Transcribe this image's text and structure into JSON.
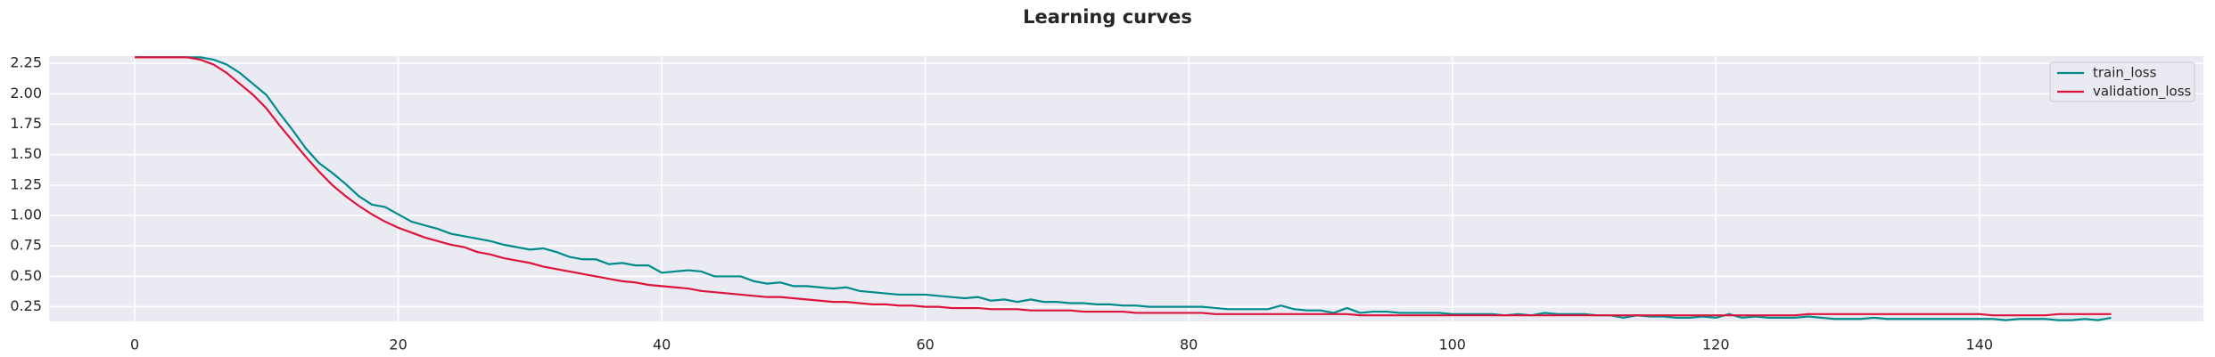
{
  "chart_data": {
    "type": "line",
    "title": "Learning curves",
    "x": [
      0,
      1,
      2,
      3,
      4,
      5,
      6,
      7,
      8,
      9,
      10,
      11,
      12,
      13,
      14,
      15,
      16,
      17,
      18,
      19,
      20,
      21,
      22,
      23,
      24,
      25,
      26,
      27,
      28,
      29,
      30,
      31,
      32,
      33,
      34,
      35,
      36,
      37,
      38,
      39,
      40,
      41,
      42,
      43,
      44,
      45,
      46,
      47,
      48,
      49,
      50,
      51,
      52,
      53,
      54,
      55,
      56,
      57,
      58,
      59,
      60,
      61,
      62,
      63,
      64,
      65,
      66,
      67,
      68,
      69,
      70,
      71,
      72,
      73,
      74,
      75,
      76,
      77,
      78,
      79,
      80,
      81,
      82,
      83,
      84,
      85,
      86,
      87,
      88,
      89,
      90,
      91,
      92,
      93,
      94,
      95,
      96,
      97,
      98,
      99,
      100,
      101,
      102,
      103,
      104,
      105,
      106,
      107,
      108,
      109,
      110,
      111,
      112,
      113,
      114,
      115,
      116,
      117,
      118,
      119,
      120,
      121,
      122,
      123,
      124,
      125,
      126,
      127,
      128,
      129,
      130,
      131,
      132,
      133,
      134,
      135,
      136,
      137,
      138,
      139,
      140,
      141,
      142,
      143,
      144,
      145,
      146,
      147,
      148,
      149,
      150
    ],
    "series": [
      {
        "name": "train_loss",
        "color": "#008b8b",
        "values": [
          2.3,
          2.3,
          2.3,
          2.3,
          2.3,
          2.3,
          2.28,
          2.24,
          2.17,
          2.08,
          1.99,
          1.84,
          1.7,
          1.55,
          1.43,
          1.35,
          1.26,
          1.16,
          1.09,
          1.07,
          1.01,
          0.95,
          0.92,
          0.89,
          0.85,
          0.83,
          0.81,
          0.79,
          0.76,
          0.74,
          0.72,
          0.73,
          0.7,
          0.66,
          0.64,
          0.64,
          0.6,
          0.61,
          0.59,
          0.59,
          0.53,
          0.54,
          0.55,
          0.54,
          0.5,
          0.5,
          0.5,
          0.46,
          0.44,
          0.45,
          0.42,
          0.42,
          0.41,
          0.4,
          0.41,
          0.38,
          0.37,
          0.36,
          0.35,
          0.35,
          0.35,
          0.34,
          0.33,
          0.32,
          0.33,
          0.3,
          0.31,
          0.29,
          0.31,
          0.29,
          0.29,
          0.28,
          0.28,
          0.27,
          0.27,
          0.26,
          0.26,
          0.25,
          0.25,
          0.25,
          0.25,
          0.25,
          0.24,
          0.23,
          0.23,
          0.23,
          0.23,
          0.26,
          0.23,
          0.22,
          0.22,
          0.2,
          0.24,
          0.2,
          0.21,
          0.21,
          0.2,
          0.2,
          0.2,
          0.2,
          0.19,
          0.19,
          0.19,
          0.19,
          0.18,
          0.19,
          0.18,
          0.2,
          0.19,
          0.19,
          0.19,
          0.18,
          0.18,
          0.16,
          0.18,
          0.17,
          0.17,
          0.16,
          0.16,
          0.17,
          0.16,
          0.19,
          0.16,
          0.17,
          0.16,
          0.16,
          0.16,
          0.17,
          0.16,
          0.15,
          0.15,
          0.15,
          0.16,
          0.15,
          0.15,
          0.15,
          0.15,
          0.15,
          0.15,
          0.15,
          0.15,
          0.15,
          0.14,
          0.15,
          0.15,
          0.15,
          0.14,
          0.14,
          0.15,
          0.14,
          0.16
        ]
      },
      {
        "name": "validation_loss",
        "color": "#dc143c",
        "values": [
          2.3,
          2.3,
          2.3,
          2.3,
          2.3,
          2.28,
          2.24,
          2.17,
          2.08,
          1.99,
          1.88,
          1.74,
          1.61,
          1.48,
          1.36,
          1.25,
          1.16,
          1.08,
          1.01,
          0.95,
          0.9,
          0.86,
          0.82,
          0.79,
          0.76,
          0.74,
          0.7,
          0.68,
          0.65,
          0.63,
          0.61,
          0.58,
          0.56,
          0.54,
          0.52,
          0.5,
          0.48,
          0.46,
          0.45,
          0.43,
          0.42,
          0.41,
          0.4,
          0.38,
          0.37,
          0.36,
          0.35,
          0.34,
          0.33,
          0.33,
          0.32,
          0.31,
          0.3,
          0.29,
          0.29,
          0.28,
          0.27,
          0.27,
          0.26,
          0.26,
          0.25,
          0.25,
          0.24,
          0.24,
          0.24,
          0.23,
          0.23,
          0.23,
          0.22,
          0.22,
          0.22,
          0.22,
          0.21,
          0.21,
          0.21,
          0.21,
          0.2,
          0.2,
          0.2,
          0.2,
          0.2,
          0.2,
          0.19,
          0.19,
          0.19,
          0.19,
          0.19,
          0.19,
          0.19,
          0.19,
          0.19,
          0.19,
          0.19,
          0.18,
          0.18,
          0.18,
          0.18,
          0.18,
          0.18,
          0.18,
          0.18,
          0.18,
          0.18,
          0.18,
          0.18,
          0.18,
          0.18,
          0.18,
          0.18,
          0.18,
          0.18,
          0.18,
          0.18,
          0.18,
          0.18,
          0.18,
          0.18,
          0.18,
          0.18,
          0.18,
          0.18,
          0.18,
          0.18,
          0.18,
          0.18,
          0.18,
          0.18,
          0.19,
          0.19,
          0.19,
          0.19,
          0.19,
          0.19,
          0.19,
          0.19,
          0.19,
          0.19,
          0.19,
          0.19,
          0.19,
          0.19,
          0.18,
          0.18,
          0.18,
          0.18,
          0.18,
          0.19,
          0.19,
          0.19,
          0.19,
          0.19
        ]
      }
    ],
    "xlim": [
      -6.5,
      157
    ],
    "ylim": [
      0.13,
      2.31
    ],
    "xticks": [
      0,
      20,
      40,
      60,
      80,
      100,
      120,
      140
    ],
    "yticks": [
      0.25,
      {
        "value": 0.5,
        "label": "0.50"
      },
      0.75,
      {
        "value": 1,
        "label": "1.00"
      },
      1.25,
      {
        "value": 1.5,
        "label": "1.50"
      },
      1.75,
      {
        "value": 2,
        "label": "2.00"
      },
      2.25
    ],
    "grid": true,
    "legend": "upper right"
  }
}
